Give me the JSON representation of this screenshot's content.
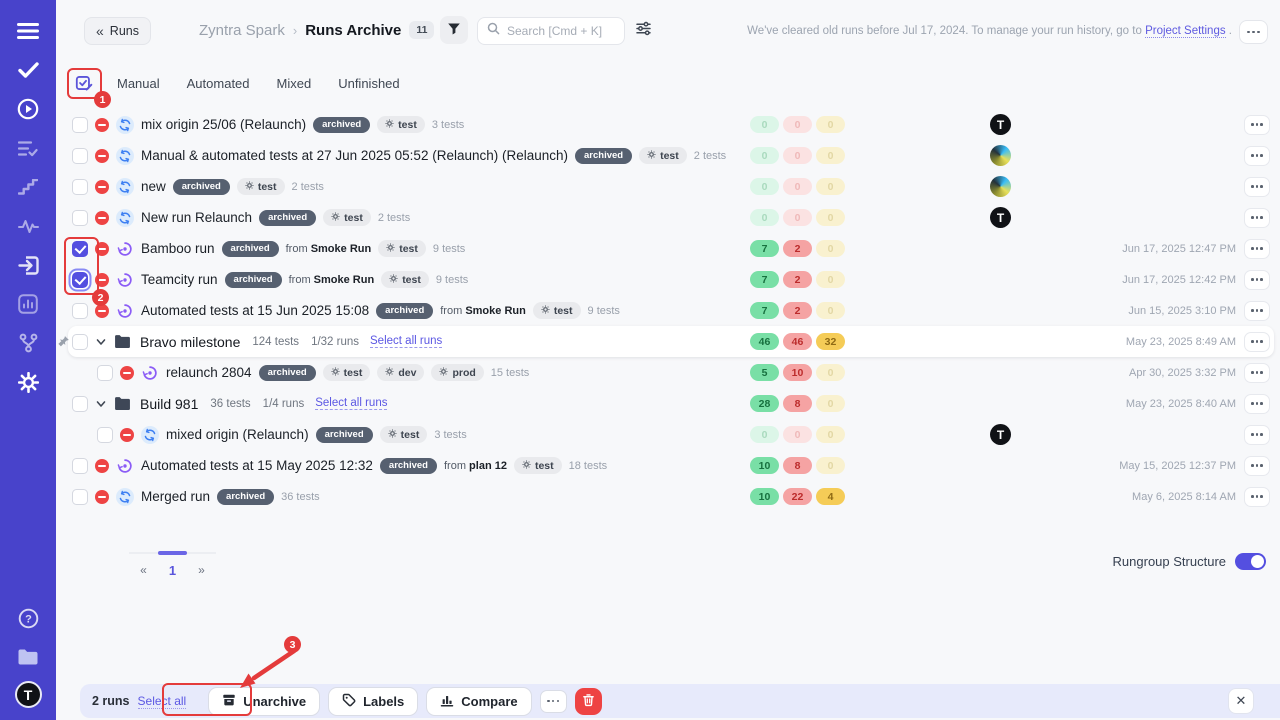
{
  "sidebar": {
    "icons": [
      "menu",
      "check",
      "play-circle",
      "list-check",
      "steps",
      "pulse",
      "import",
      "bar-chart",
      "git-branch",
      "gear",
      "help",
      "folder",
      "avatar"
    ],
    "avatar_letter": "T"
  },
  "header": {
    "back_glyph": "«",
    "back_button": "Runs",
    "project": "Zyntra Spark",
    "breadcrumb_sep": "›",
    "page_title": "Runs Archive",
    "count_badge": "11",
    "search_placeholder": "Search [Cmd + K]",
    "notice_prefix": "We've cleared old runs before Jul 17, 2024. To manage your run history, go to ",
    "notice_link": "Project Settings",
    "notice_suffix": " ."
  },
  "tabs": {
    "items": [
      "Manual",
      "Automated",
      "Mixed",
      "Unfinished"
    ]
  },
  "strings": {
    "from": "from"
  },
  "rows": [
    {
      "kind": "run",
      "indent": 0,
      "checked": false,
      "origin": "mixed",
      "name": "mix origin 25/06 (Relaunch)",
      "archived": "archived",
      "from": null,
      "tags": [
        "test"
      ],
      "tests": "3 tests",
      "counts": {
        "p": "0",
        "f": "0",
        "s": "0",
        "pon": false,
        "fon": false,
        "son": false
      },
      "avatar": "t",
      "date": ""
    },
    {
      "kind": "run",
      "indent": 0,
      "checked": false,
      "origin": "mixed",
      "name": "Manual & automated tests at 27 Jun 2025 05:52 (Relaunch) (Relaunch)",
      "archived": "archived",
      "from": null,
      "tags": [
        "test"
      ],
      "tests": "2 tests",
      "counts": {
        "p": "0",
        "f": "0",
        "s": "0",
        "pon": false,
        "fon": false,
        "son": false
      },
      "avatar": "ball",
      "date": ""
    },
    {
      "kind": "run",
      "indent": 0,
      "checked": false,
      "origin": "mixed",
      "name": "new",
      "archived": "archived",
      "from": null,
      "tags": [
        "test"
      ],
      "tests": "2 tests",
      "counts": {
        "p": "0",
        "f": "0",
        "s": "0",
        "pon": false,
        "fon": false,
        "son": false
      },
      "avatar": "ball",
      "date": ""
    },
    {
      "kind": "run",
      "indent": 0,
      "checked": false,
      "origin": "mixed",
      "name": "New run Relaunch",
      "archived": "archived",
      "from": null,
      "tags": [
        "test"
      ],
      "tests": "2 tests",
      "counts": {
        "p": "0",
        "f": "0",
        "s": "0",
        "pon": false,
        "fon": false,
        "son": false
      },
      "avatar": "t",
      "date": ""
    },
    {
      "kind": "run",
      "indent": 0,
      "checked": true,
      "origin": "automated",
      "name": "Bamboo run",
      "archived": "archived",
      "from": "Smoke Run",
      "tags": [
        "test"
      ],
      "tests": "9 tests",
      "counts": {
        "p": "7",
        "f": "2",
        "s": "0",
        "pon": true,
        "fon": true,
        "son": false
      },
      "avatar": null,
      "date": "Jun 17, 2025 12:47 PM"
    },
    {
      "kind": "run",
      "indent": 0,
      "checked": true,
      "ring": true,
      "origin": "automated",
      "name": "Teamcity run",
      "archived": "archived",
      "from": "Smoke Run",
      "tags": [
        "test"
      ],
      "tests": "9 tests",
      "counts": {
        "p": "7",
        "f": "2",
        "s": "0",
        "pon": true,
        "fon": true,
        "son": false
      },
      "avatar": null,
      "date": "Jun 17, 2025 12:42 PM"
    },
    {
      "kind": "run",
      "indent": 0,
      "checked": false,
      "origin": "automated",
      "name": "Automated tests at 15 Jun 2025 15:08",
      "archived": "archived",
      "from": "Smoke Run",
      "tags": [
        "test"
      ],
      "tests": "9 tests",
      "counts": {
        "p": "7",
        "f": "2",
        "s": "0",
        "pon": true,
        "fon": true,
        "son": false
      },
      "avatar": null,
      "date": "Jun 15, 2025 3:10 PM"
    },
    {
      "kind": "folder",
      "pinned": true,
      "white": true,
      "checked": false,
      "name": "Bravo milestone",
      "tests": "124 tests",
      "runs": "1/32 runs",
      "select": "Select all runs",
      "counts": {
        "p": "46",
        "f": "46",
        "s": "32",
        "pon": true,
        "fon": true,
        "son": true
      },
      "avatar": null,
      "date": "May 23, 2025 8:49 AM"
    },
    {
      "kind": "run",
      "indent": 1,
      "checked": false,
      "origin": "automated",
      "name": "relaunch 2804",
      "archived": "archived",
      "from": null,
      "tags": [
        "test",
        "dev",
        "prod"
      ],
      "tests": "15 tests",
      "counts": {
        "p": "5",
        "f": "10",
        "s": "0",
        "pon": true,
        "fon": true,
        "son": false
      },
      "avatar": null,
      "date": "Apr 30, 2025 3:32 PM"
    },
    {
      "kind": "folder",
      "pinned": false,
      "white": false,
      "checked": false,
      "name": "Build 981",
      "tests": "36 tests",
      "runs": "1/4 runs",
      "select": "Select all runs",
      "counts": {
        "p": "28",
        "f": "8",
        "s": "0",
        "pon": true,
        "fon": true,
        "son": false
      },
      "avatar": null,
      "date": "May 23, 2025 8:40 AM"
    },
    {
      "kind": "run",
      "indent": 1,
      "checked": false,
      "origin": "mixed",
      "name": "mixed origin (Relaunch)",
      "archived": "archived",
      "from": null,
      "tags": [
        "test"
      ],
      "tests": "3 tests",
      "counts": {
        "p": "0",
        "f": "0",
        "s": "0",
        "pon": false,
        "fon": false,
        "son": false
      },
      "avatar": "t",
      "date": ""
    },
    {
      "kind": "run",
      "indent": 0,
      "checked": false,
      "origin": "automated",
      "name": "Automated tests at 15 May 2025 12:32",
      "archived": "archived",
      "from": "plan 12",
      "tags": [
        "test"
      ],
      "tests": "18 tests",
      "counts": {
        "p": "10",
        "f": "8",
        "s": "0",
        "pon": true,
        "fon": true,
        "son": false
      },
      "avatar": null,
      "date": "May 15, 2025 12:37 PM"
    },
    {
      "kind": "run",
      "indent": 0,
      "checked": false,
      "origin": "mixed",
      "name": "Merged run",
      "archived": "archived",
      "from": null,
      "tags": [],
      "tests": "36 tests",
      "counts": {
        "p": "10",
        "f": "22",
        "s": "4",
        "pon": true,
        "fon": true,
        "son": true
      },
      "avatar": null,
      "date": "May 6, 2025 8:14 AM"
    }
  ],
  "pagination": {
    "prev": "«",
    "page": "1",
    "next": "»"
  },
  "rungroup": {
    "label": "Rungroup Structure",
    "on": true
  },
  "action_bar": {
    "selected": "2 runs",
    "select_all": "Select all",
    "unarchive": "Unarchive",
    "labels": "Labels",
    "compare": "Compare",
    "close_glyph": "✕"
  },
  "annotations": {
    "step1": "1",
    "step2": "2",
    "step3": "3"
  },
  "colors": {
    "accent": "#544FE0",
    "sidebar": "#4843CB",
    "annotation": "#E43B3B",
    "passed": "#79DFA6",
    "failed": "#F5A3A3",
    "skipped": "#F5CC57"
  }
}
